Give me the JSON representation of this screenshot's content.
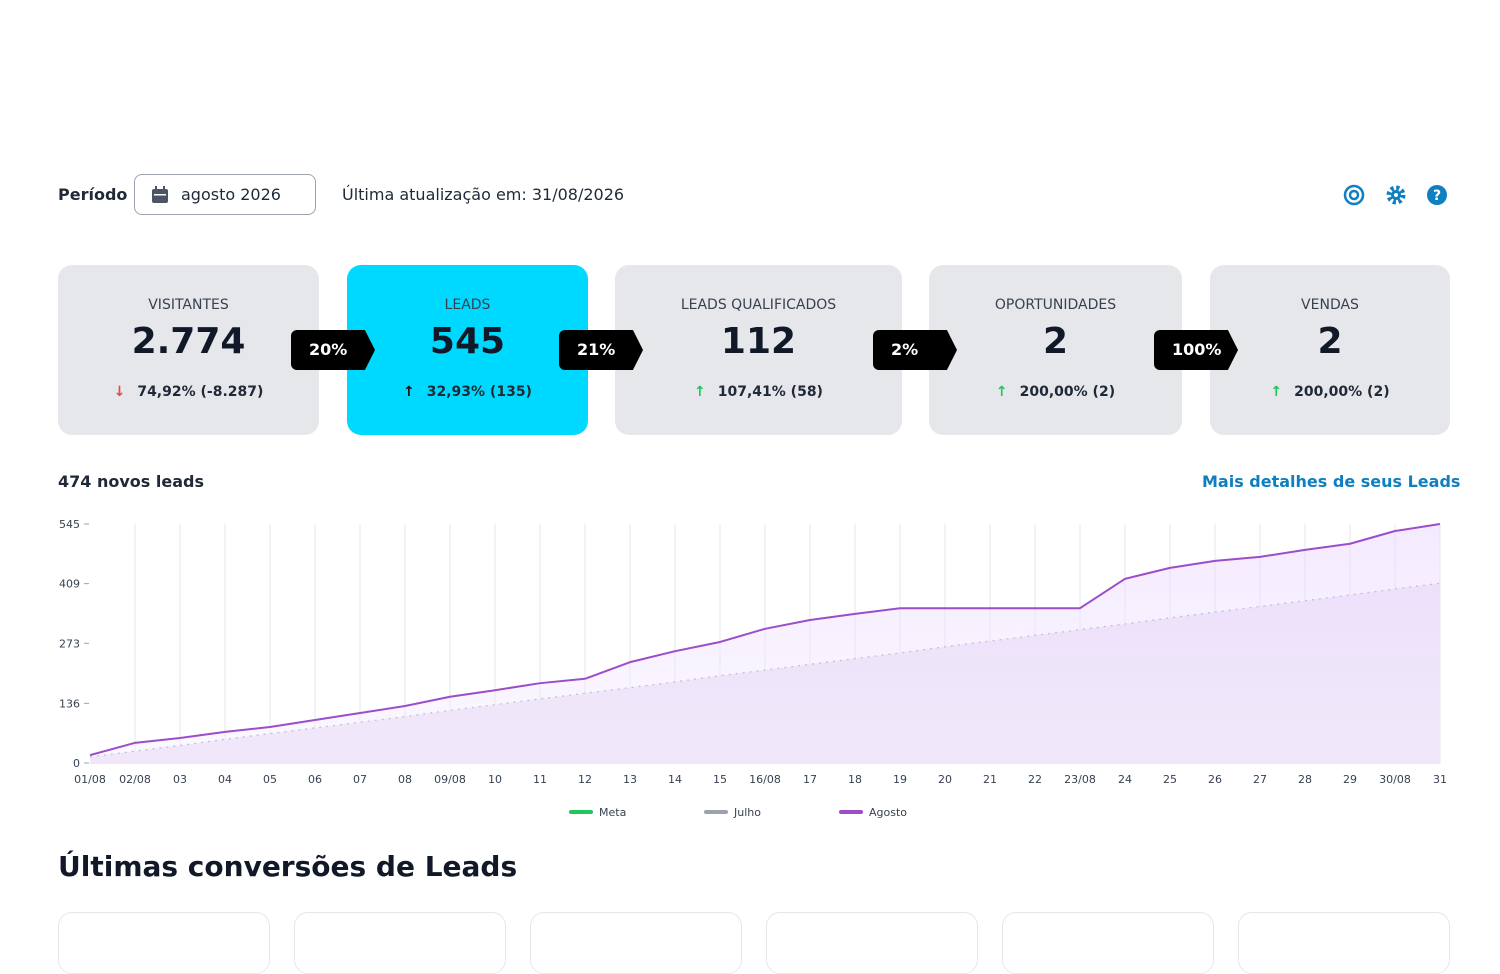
{
  "header": {
    "period_label": "Período",
    "period_value": "agosto 2026",
    "last_update": "Última atualização em: 31/08/2026"
  },
  "funnel": {
    "active": 1,
    "stages": [
      {
        "label": "VISITANTES",
        "value": "2.774",
        "change": "74,92% (-8.287)",
        "direction": "down"
      },
      {
        "label": "LEADS",
        "value": "545",
        "change": "32,93% (135)",
        "direction": "up"
      },
      {
        "label": "LEADS QUALIFICADOS",
        "value": "112",
        "change": "107,41% (58)",
        "direction": "up"
      },
      {
        "label": "OPORTUNIDADES",
        "value": "2",
        "change": "200,00% (2)",
        "direction": "up"
      },
      {
        "label": "VENDAS",
        "value": "2",
        "change": "200,00% (2)",
        "direction": "up"
      }
    ],
    "conversions": [
      "20%",
      "21%",
      "2%",
      "100%"
    ]
  },
  "chart_data": {
    "type": "line",
    "title": "474 novos leads",
    "link": "Mais detalhes de seus Leads",
    "categories": [
      "01/08",
      "02/08",
      "03",
      "04",
      "05",
      "06",
      "07",
      "08",
      "09/08",
      "10",
      "11",
      "12",
      "13",
      "14",
      "15",
      "16/08",
      "17",
      "18",
      "19",
      "20",
      "21",
      "22",
      "23/08",
      "24",
      "25",
      "26",
      "27",
      "28",
      "29",
      "30/08",
      "31"
    ],
    "ylim": [
      0,
      545
    ],
    "yticks": [
      0,
      136,
      273,
      409,
      545
    ],
    "series": [
      {
        "name": "Meta",
        "color": "#22c55e",
        "values": [
          null,
          null,
          null,
          null,
          null,
          null,
          null,
          null,
          null,
          null,
          null,
          null,
          null,
          null,
          null,
          null,
          null,
          null,
          null,
          null,
          null,
          null,
          null,
          null,
          null,
          null,
          null,
          null,
          null,
          null,
          null
        ]
      },
      {
        "name": "Julho",
        "color": "#9ca3af",
        "values": [
          14,
          27,
          40,
          54,
          67,
          80,
          93,
          106,
          120,
          133,
          146,
          159,
          172,
          185,
          199,
          212,
          225,
          238,
          251,
          265,
          278,
          291,
          304,
          317,
          331,
          344,
          357,
          370,
          383,
          397,
          410
        ]
      },
      {
        "name": "Agosto",
        "color": "#9b4dca",
        "values": [
          18,
          46,
          57,
          71,
          82,
          98,
          114,
          130,
          151,
          166,
          182,
          192,
          230,
          255,
          276,
          306,
          326,
          340,
          353,
          353,
          353,
          353,
          353,
          420,
          445,
          461,
          470,
          486,
          500,
          529,
          545
        ]
      }
    ]
  },
  "section": {
    "title": "Últimas conversões de Leads"
  }
}
